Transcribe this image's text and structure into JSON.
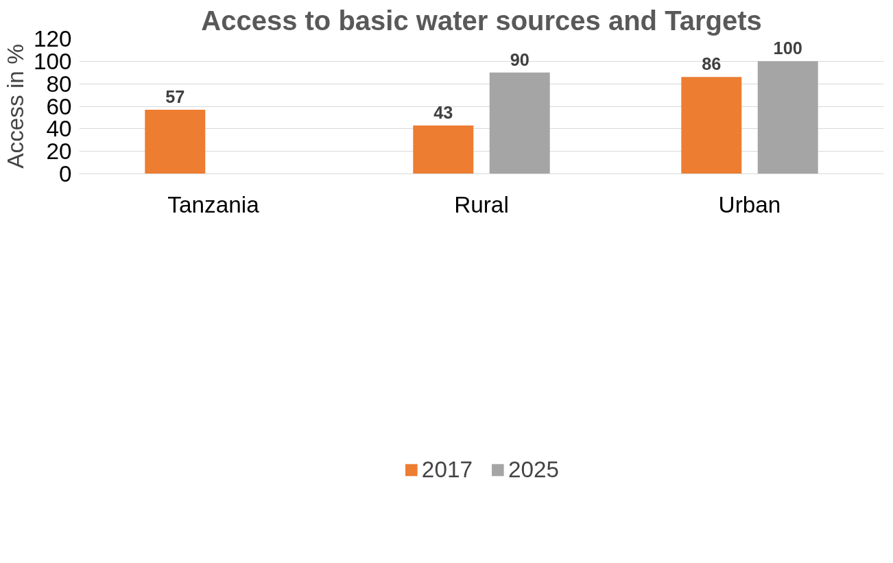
{
  "chart_data": {
    "type": "bar",
    "title": "Access to basic water sources and Targets",
    "ylabel": "Access in %",
    "categories": [
      "Tanzania",
      "Rural",
      "Urban"
    ],
    "series": [
      {
        "name": "2017",
        "color": "#ed7d31",
        "values": [
          57,
          43,
          86
        ]
      },
      {
        "name": "2025",
        "color": "#a5a5a5",
        "values": [
          null,
          90,
          100
        ]
      }
    ],
    "ylim": [
      0,
      120
    ],
    "yticks": [
      0,
      20,
      40,
      60,
      80,
      100,
      120
    ],
    "grid": "y",
    "legend": "bottom",
    "data_labels": true
  }
}
